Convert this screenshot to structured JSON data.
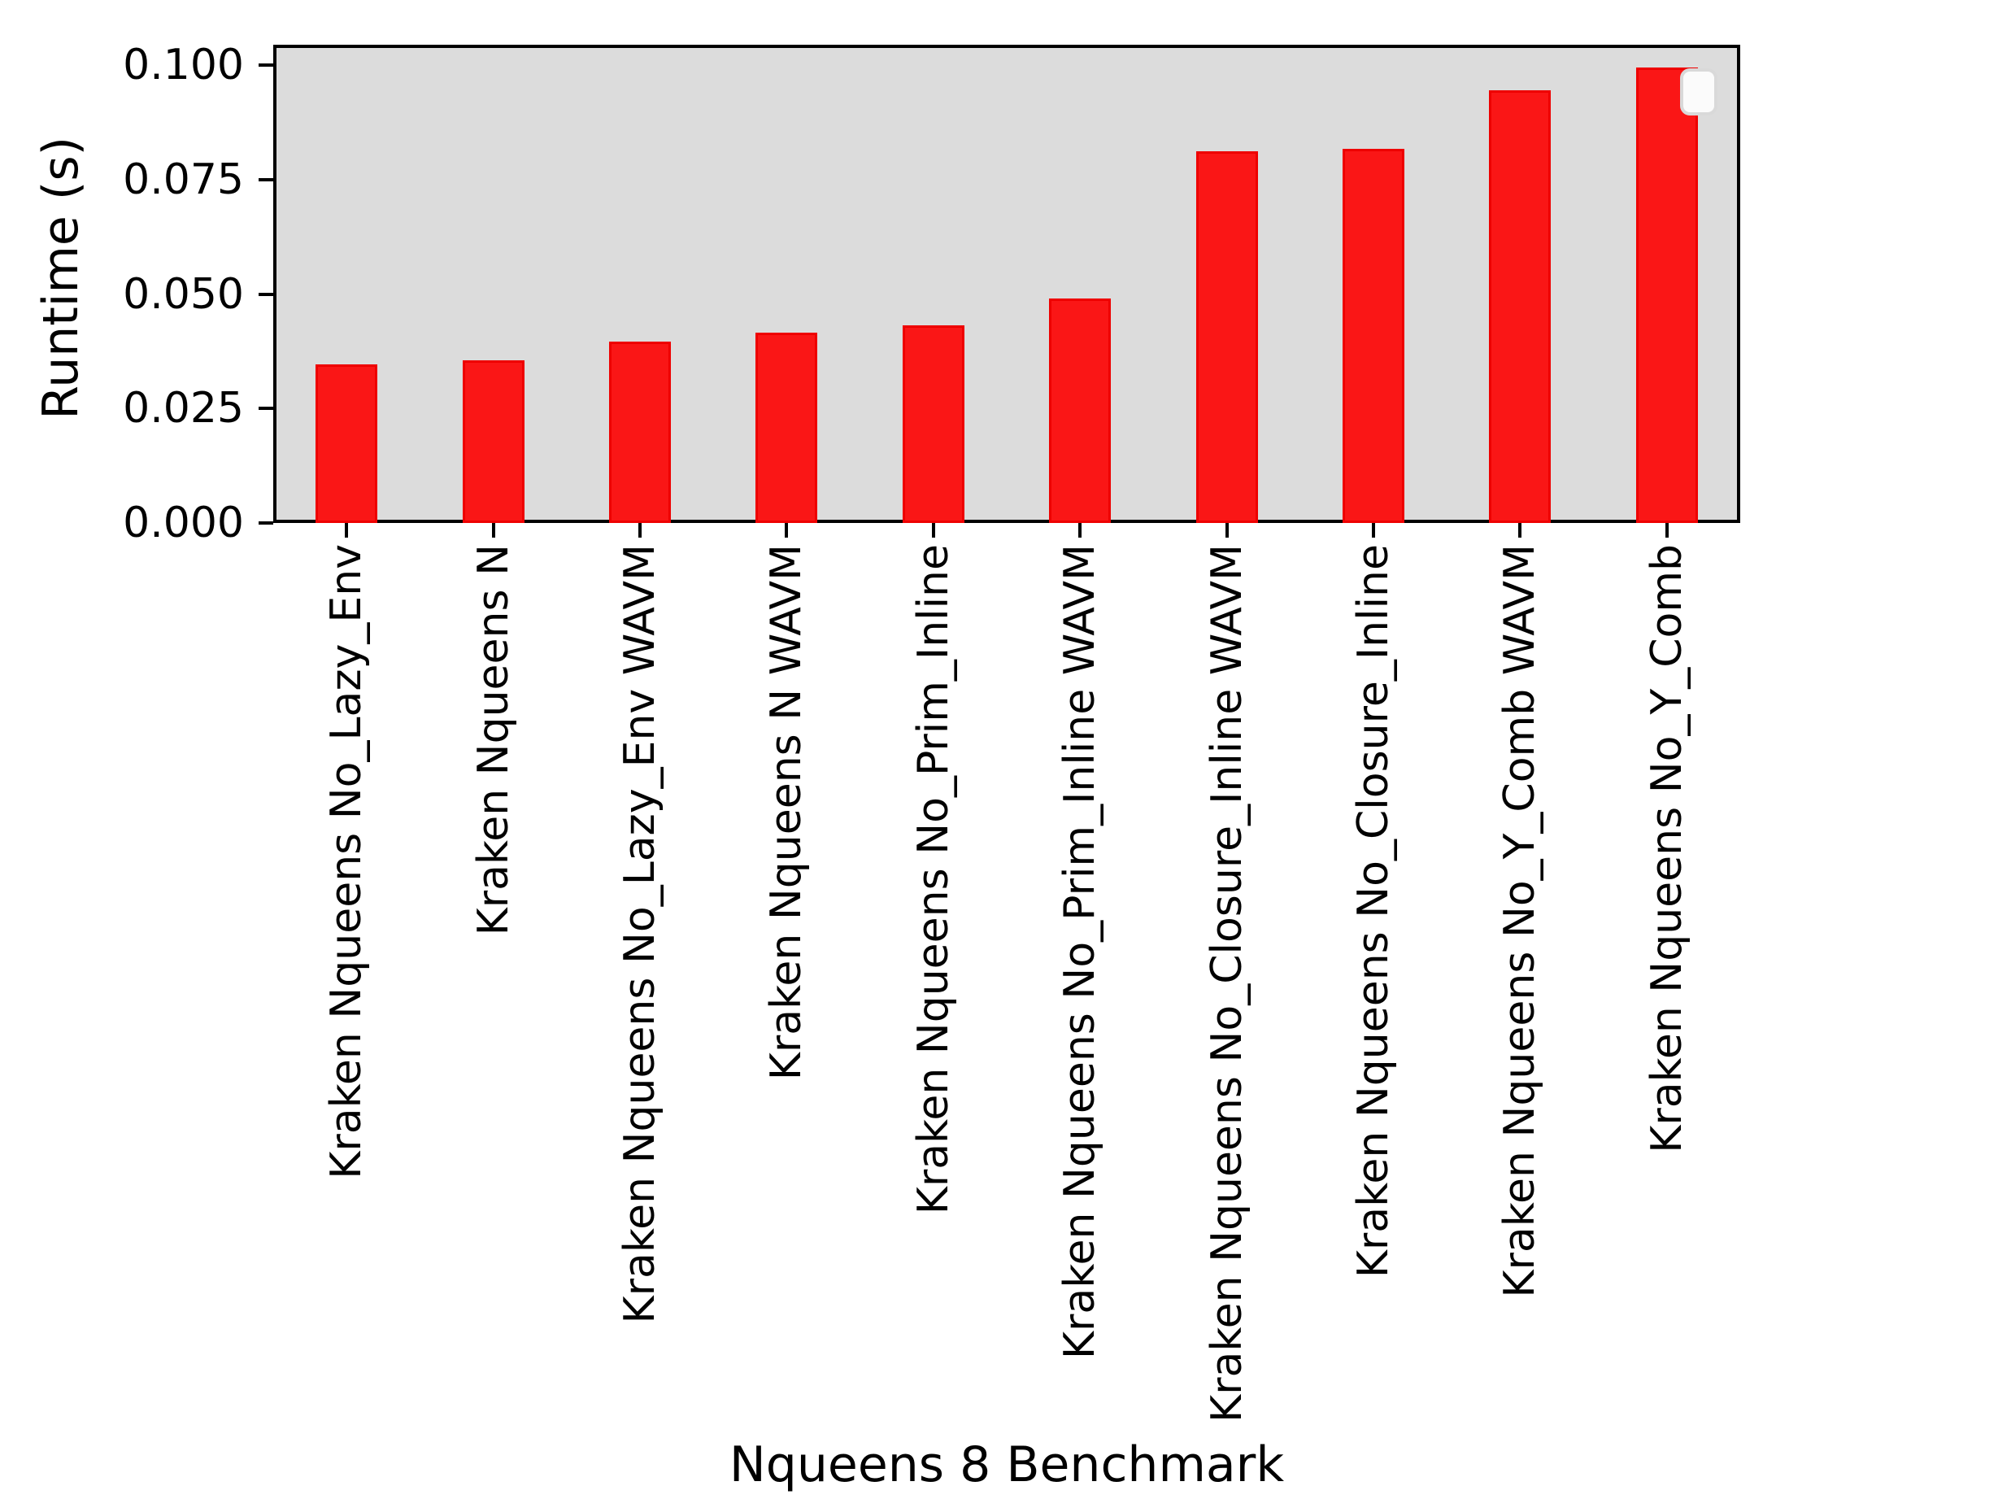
{
  "chart_data": {
    "type": "bar",
    "title": "",
    "xlabel": "Nqueens 8 Benchmark",
    "ylabel": "Runtime (s)",
    "categories": [
      "Kraken Nqueens No_Lazy_Env",
      "Kraken Nqueens N",
      "Kraken Nqueens No_Lazy_Env WAVM",
      "Kraken Nqueens N WAVM",
      "Kraken Nqueens No_Prim_Inline",
      "Kraken Nqueens No_Prim_Inline WAVM",
      "Kraken Nqueens No_Closure_Inline WAVM",
      "Kraken Nqueens No_Closure_Inline",
      "Kraken Nqueens No_Y_Comb WAVM",
      "Kraken Nqueens No_Y_Comb"
    ],
    "values": [
      0.0346,
      0.0355,
      0.0396,
      0.0415,
      0.0432,
      0.0491,
      0.0812,
      0.0817,
      0.0945,
      0.0995
    ],
    "ylim": [
      0,
      0.1045
    ],
    "yticks": [
      0.0,
      0.025,
      0.05,
      0.075,
      0.1
    ],
    "ytick_labels": [
      "0.000",
      "0.025",
      "0.050",
      "0.075",
      "0.100"
    ],
    "grid": false,
    "legend": {
      "visible": true,
      "position": "upper right",
      "entries": []
    },
    "colors": {
      "bar_fill": "#fa1616",
      "bar_edge": "#ee0000",
      "plot_background": "#dcdcdc",
      "figure_background": "#ffffff",
      "axis": "#000000",
      "legend_fill": "#fbfbfb",
      "legend_border": "#d9d9d9"
    }
  }
}
